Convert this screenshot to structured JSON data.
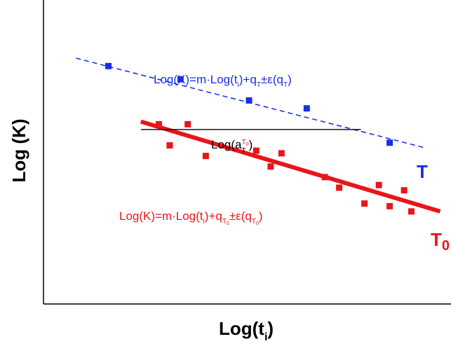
{
  "chart_data": {
    "type": "scatter",
    "xlabel": "Log(t",
    "xlabel_sub": "i",
    "ylabel": "Log (K)",
    "grid": false,
    "log_scale": false,
    "series": [
      {
        "name": "T",
        "color": "#1a2ee6",
        "marker": "square",
        "points": [
          [
            1.8,
            9.0
          ],
          [
            3.8,
            8.5
          ],
          [
            5.7,
            7.7
          ],
          [
            7.3,
            7.4
          ],
          [
            9.6,
            6.1
          ]
        ],
        "fit": {
          "style": "dashed",
          "x": [
            0.9,
            10.6
          ],
          "y": [
            9.3,
            5.9
          ]
        }
      },
      {
        "name": "T0",
        "color": "#e8151b",
        "marker": "square",
        "points": [
          [
            3.2,
            6.8
          ],
          [
            3.5,
            6.0
          ],
          [
            4.0,
            6.8
          ],
          [
            4.5,
            5.6
          ],
          [
            5.9,
            5.8
          ],
          [
            6.3,
            5.2
          ],
          [
            6.6,
            5.7
          ],
          [
            7.8,
            4.8
          ],
          [
            8.2,
            4.4
          ],
          [
            8.9,
            3.8
          ],
          [
            9.3,
            4.5
          ],
          [
            9.6,
            3.7
          ],
          [
            10.0,
            4.3
          ],
          [
            10.2,
            3.5
          ]
        ],
        "fit": {
          "style": "solid",
          "x": [
            2.7,
            11.0
          ],
          "y": [
            6.9,
            3.5
          ]
        }
      }
    ],
    "shift_arrow": {
      "x_from": 2.7,
      "x_to": 8.8,
      "y": 6.6
    },
    "annotations": {
      "blue_equation": {
        "pre": "Log(K)=m·Log(t",
        "sub_i": "i",
        "mid": ")+q",
        "sub_T1": "T",
        "pm": "±ε(q",
        "sub_T2": "T",
        "post": ")"
      },
      "red_equation": {
        "pre": "Log(K)=m·Log(t",
        "sub_i": "i",
        "mid": ")+q",
        "sub_T1": "T",
        "subsub_1": "0",
        "pm": "±ε(q",
        "sub_T2": "T",
        "subsub_2": "0",
        "post": ")"
      },
      "shift": {
        "pre": "Log(a",
        "sup": "T",
        "supsub": "0",
        "sub": "T",
        "post": ")"
      },
      "label_T": "T",
      "label_T0": "T",
      "label_T0_sub": "0"
    }
  }
}
